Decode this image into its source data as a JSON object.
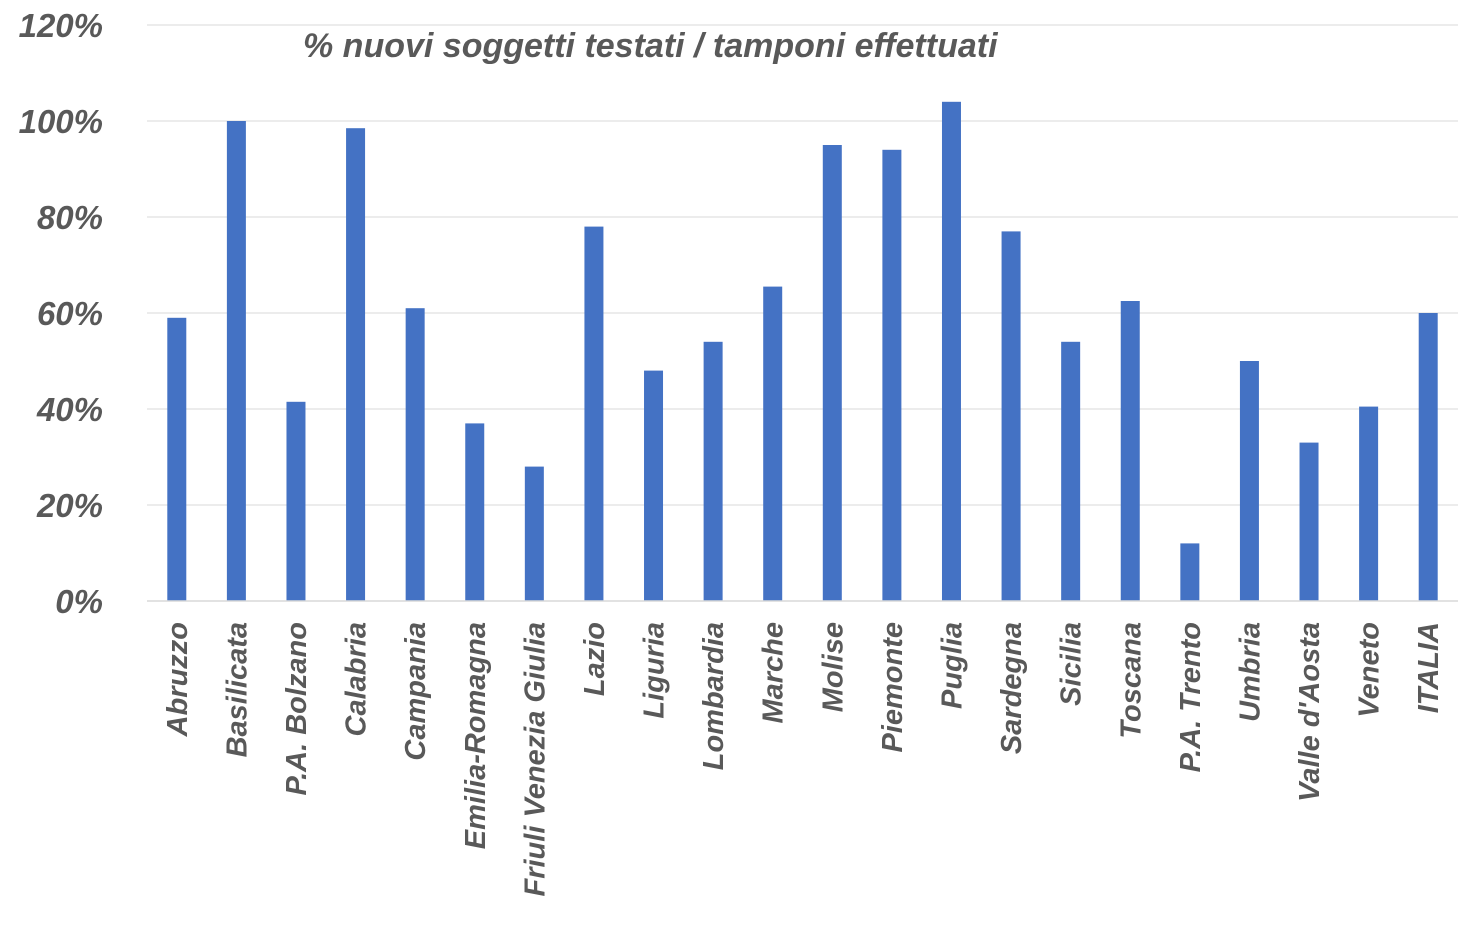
{
  "chart_data": {
    "type": "bar",
    "title": "% nuovi soggetti testati /  tamponi effettuati",
    "xlabel": "",
    "ylabel": "",
    "ylim": [
      0,
      120
    ],
    "yticks": [
      0,
      20,
      40,
      60,
      80,
      100,
      120
    ],
    "ytick_labels": [
      "0%",
      "20%",
      "40%",
      "60%",
      "80%",
      "100%",
      "120%"
    ],
    "grid": true,
    "legend": "none",
    "bar_color": "#4472C4",
    "categories": [
      "Abruzzo",
      "Basilicata",
      "P.A. Bolzano",
      "Calabria",
      "Campania",
      "Emilia-Romagna",
      "Friuli Venezia Giulia",
      "Lazio",
      "Liguria",
      "Lombardia",
      "Marche",
      "Molise",
      "Piemonte",
      "Puglia",
      "Sardegna",
      "Sicilia",
      "Toscana",
      "P.A. Trento",
      "Umbria",
      "Valle d'Aosta",
      "Veneto",
      "ITALIA"
    ],
    "values": [
      59,
      100,
      41.5,
      98.5,
      61,
      37,
      28,
      78,
      48,
      54,
      65.5,
      95,
      94,
      104,
      77,
      54,
      62.5,
      12,
      50,
      33,
      40.5,
      60
    ]
  }
}
